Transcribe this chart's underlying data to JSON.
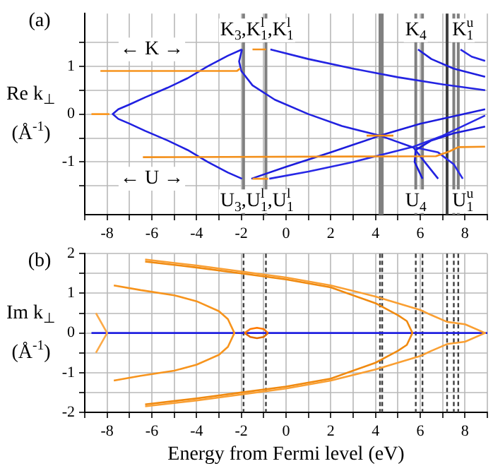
{
  "chart_data": [
    {
      "type": "line",
      "ylabel": "Re k$_{⊥}$ (Å$^{-1}$)",
      "xlim": [
        -9,
        9
      ],
      "ylim": [
        -2.1,
        2.1
      ],
      "xticks": [
        {
          "value": -9,
          "label": null
        },
        -8,
        {
          "value": -7,
          "label": null
        },
        -6,
        {
          "value": -5,
          "label": null
        },
        -4,
        {
          "value": -3,
          "label": null
        },
        -2,
        {
          "value": -1,
          "label": null
        },
        0,
        {
          "value": 1,
          "label": null
        },
        2,
        {
          "value": 3,
          "label": null
        },
        4,
        {
          "value": 5,
          "label": null
        },
        6,
        {
          "value": 7,
          "label": null
        },
        8,
        {
          "value": 9,
          "label": null
        }
      ],
      "yticks": [
        {
          "value": -1.5,
          "label": null
        },
        -1,
        {
          "value": -0.5,
          "label": null
        },
        0,
        {
          "value": 0.5,
          "label": null
        },
        1,
        {
          "value": 1.5,
          "label": null
        }
      ],
      "grid": true,
      "marker": "none",
      "line_style": "solid",
      "series": [
        {
          "color": "#f18e19",
          "x": [
            3.6,
            4.8
          ],
          "values": [
            -0.45,
            -0.45
          ]
        },
        {
          "color": "#f7941e",
          "x": [
            -8.3,
            -2.2,
            -2.05
          ],
          "values": [
            0.9,
            0.9,
            0.95
          ]
        },
        {
          "color": "#f5921d",
          "x": [
            -1.5,
            -0.9
          ],
          "values": [
            1.35,
            1.35
          ]
        },
        {
          "color": "#f9961f",
          "x": [
            -1.5,
            -0.8
          ],
          "values": [
            -1.35,
            -1.35
          ]
        },
        {
          "color": "#f3901b",
          "x": [
            -6.4,
            6.7,
            7.3,
            7.7,
            8.9
          ],
          "values": [
            -0.9,
            -0.88,
            -0.78,
            -0.69,
            -0.68
          ]
        },
        {
          "color": "#fb9821",
          "x": [
            -8.7,
            -7.9
          ],
          "values": [
            0,
            0
          ]
        },
        {
          "color": "#2020e1",
          "x": [
            -1.97,
            -2.6,
            -3.5,
            -4.4,
            -5.3,
            -6.3,
            -7.0,
            -7.5,
            -7.75,
            -7.5,
            -7.0,
            -6.3,
            -5.3,
            -4.4,
            -3.5,
            -2.6,
            -1.97
          ],
          "values": [
            1.35,
            1.22,
            1.0,
            0.75,
            0.55,
            0.35,
            0.2,
            0.1,
            0,
            -0.1,
            -0.2,
            -0.35,
            -0.55,
            -0.75,
            -1.0,
            -1.22,
            -1.35
          ]
        },
        {
          "color": "#2222e0",
          "x": [
            -1.97,
            -2.1,
            -2.0,
            -1.5,
            -0.5,
            1,
            2.5,
            4.2,
            5.7,
            6.2,
            6.8
          ],
          "values": [
            1.35,
            1.1,
            0.9,
            0.6,
            0.3,
            0.0,
            -0.25,
            -0.45,
            -0.7,
            -1.0,
            -1.35
          ]
        },
        {
          "color": "#2424e2",
          "x": [
            -0.7,
            1,
            3,
            5,
            7,
            8.9
          ],
          "values": [
            1.35,
            1.15,
            0.95,
            0.77,
            0.62,
            0.5
          ]
        },
        {
          "color": "#1e1ede",
          "x": [
            5.9,
            6.5,
            7.5,
            8.9
          ],
          "values": [
            1.35,
            1.15,
            0.95,
            0.78
          ]
        },
        {
          "color": "#2626e4",
          "x": [
            7.8,
            8.3,
            8.9
          ],
          "values": [
            1.35,
            1.2,
            1.11
          ]
        },
        {
          "color": "#1c1cdc",
          "x": [
            -1.55,
            0,
            2,
            4.2,
            6,
            8.9
          ],
          "values": [
            -1.35,
            -1.1,
            -0.8,
            -0.45,
            -0.2,
            0.1
          ]
        },
        {
          "color": "#2828e6",
          "x": [
            -0.75,
            1,
            3,
            5.7,
            7,
            8.9
          ],
          "values": [
            -1.35,
            -1.2,
            -1.0,
            -0.68,
            -0.45,
            -0.03
          ]
        },
        {
          "color": "#1a1ada",
          "x": [
            6.1,
            5.75,
            5.8,
            6.5,
            7.5,
            8.9
          ],
          "values": [
            -1.35,
            -1.0,
            -0.75,
            -0.55,
            -0.4,
            -0.26
          ]
        },
        {
          "color": "#2a2ae8",
          "x": [
            5.8,
            6.8,
            7.5,
            7.9
          ],
          "values": [
            -0.7,
            -0.8,
            -1.05,
            -1.35
          ]
        }
      ],
      "ref_lines": [
        {
          "axis": "x",
          "value": -1.9,
          "color": "#808080",
          "line_style": "solid"
        },
        {
          "axis": "x",
          "value": -0.9,
          "color": "#808080",
          "line_style": "solid"
        },
        {
          "axis": "x",
          "value": 4.2,
          "color": "#808080",
          "line_style": "solid"
        },
        {
          "axis": "x",
          "value": 4.3,
          "color": "#808080",
          "line_style": "solid"
        },
        {
          "axis": "x",
          "value": 5.8,
          "color": "#808080",
          "line_style": "solid"
        },
        {
          "axis": "x",
          "value": 6.1,
          "color": "#808080",
          "line_style": "solid"
        },
        {
          "axis": "x",
          "value": 7.2,
          "color": "#404040",
          "line_style": "solid"
        },
        {
          "axis": "x",
          "value": 7.5,
          "color": "#808080",
          "line_style": "solid"
        },
        {
          "axis": "x",
          "value": 7.7,
          "color": "#808080",
          "line_style": "solid"
        }
      ],
      "annotations": [
        "(a)",
        "K$_{3}$,K$_{1}$$^{l}$,K$_{1}$$^{l}$",
        "K$_{4}$",
        "K$_{1}$$^{u}$",
        "U$_{3}$,U$_{1}$$^{l}$,U$_{1}$$^{l}$",
        "U$_{4}$",
        "U$_{1}$$^{u}$",
        "← K →",
        "← U →"
      ]
    },
    {
      "type": "line",
      "ylabel": "Im k$_{⊥}$ (Å$^{-1}$)",
      "xlabel": "Energy from Fermi level (eV)",
      "xlim": [
        -9,
        9
      ],
      "ylim": [
        -2,
        2
      ],
      "xticks": [
        {
          "value": -9,
          "label": null
        },
        -8,
        {
          "value": -7,
          "label": null
        },
        -6,
        {
          "value": -5,
          "label": null
        },
        -4,
        {
          "value": -3,
          "label": null
        },
        -2,
        {
          "value": -1,
          "label": null
        },
        0,
        {
          "value": 1,
          "label": null
        },
        2,
        {
          "value": 3,
          "label": null
        },
        4,
        {
          "value": 5,
          "label": null
        },
        6,
        {
          "value": 7,
          "label": null
        },
        8,
        {
          "value": 9,
          "label": null
        }
      ],
      "yticks": [
        -2,
        {
          "value": -1.5,
          "label": null
        },
        -1,
        {
          "value": -0.5,
          "label": null
        },
        0,
        {
          "value": 0.5,
          "label": null
        },
        1,
        {
          "value": 1.5,
          "label": null
        },
        2
      ],
      "grid": true,
      "marker": "none",
      "line_style": "solid",
      "series": [
        {
          "color": "#ff7a00",
          "x": [
            -1.85,
            -1.6,
            -1.3,
            -1.0,
            -0.8
          ],
          "values": [
            0,
            0.1,
            0.13,
            0.1,
            0
          ]
        },
        {
          "color": "#e06c00",
          "x": [
            -1.85,
            -1.6,
            -1.3,
            -1.0,
            -0.8
          ],
          "values": [
            0,
            -0.1,
            -0.13,
            -0.1,
            0
          ]
        },
        {
          "color": "#fcaa48",
          "x": [
            -8.5,
            -8.0,
            -8.5
          ],
          "values": [
            0.5,
            0,
            -0.5
          ]
        },
        {
          "color": "#f7941d",
          "x": [
            -7.7,
            -6.5,
            -5,
            -4,
            -3,
            -2.6,
            -2.31,
            -2.6,
            -3,
            -4,
            -5,
            -6.5,
            -7.7
          ],
          "values": [
            1.2,
            1.08,
            0.95,
            0.8,
            0.55,
            0.35,
            0,
            -0.35,
            -0.55,
            -0.8,
            -0.95,
            -1.08,
            -1.2
          ]
        },
        {
          "color": "#f08a10",
          "x": [
            -6.3,
            -4,
            -2,
            0,
            2,
            4,
            5,
            5.4,
            5.65,
            5.4,
            5,
            4,
            2,
            0,
            -2,
            -4,
            -6.3
          ],
          "values": [
            1.8,
            1.65,
            1.5,
            1.35,
            1.15,
            0.75,
            0.45,
            0.3,
            0,
            -0.3,
            -0.45,
            -0.75,
            -1.15,
            -1.35,
            -1.5,
            -1.65,
            -1.8
          ]
        },
        {
          "color": "#fa9f32",
          "x": [
            -6.3,
            -4,
            -2,
            0,
            2,
            4,
            6,
            6.5,
            7.2,
            8,
            8.9,
            8,
            7.2,
            6.5,
            6,
            4,
            2,
            0,
            -2,
            -4,
            -6.3
          ],
          "values": [
            1.85,
            1.7,
            1.55,
            1.4,
            1.2,
            0.92,
            0.58,
            0.45,
            0.28,
            0.22,
            0,
            -0.22,
            -0.28,
            -0.45,
            -0.58,
            -0.92,
            -1.2,
            -1.4,
            -1.55,
            -1.7,
            -1.85
          ]
        },
        {
          "color": "#2020e0",
          "x": [
            -8.7,
            9
          ],
          "values": [
            0,
            0
          ]
        }
      ],
      "ref_lines": [
        {
          "axis": "x",
          "value": -1.9,
          "color": "#404040",
          "line_style": "dashed"
        },
        {
          "axis": "x",
          "value": -0.9,
          "color": "#404040",
          "line_style": "dashed"
        },
        {
          "axis": "x",
          "value": 4.2,
          "color": "#404040",
          "line_style": "dashed"
        },
        {
          "axis": "x",
          "value": 4.3,
          "color": "#404040",
          "line_style": "dashed"
        },
        {
          "axis": "x",
          "value": 5.8,
          "color": "#404040",
          "line_style": "dashed"
        },
        {
          "axis": "x",
          "value": 6.1,
          "color": "#404040",
          "line_style": "dashed"
        },
        {
          "axis": "x",
          "value": 7.2,
          "color": "#404040",
          "line_style": "dashed"
        },
        {
          "axis": "x",
          "value": 7.5,
          "color": "#404040",
          "line_style": "dashed"
        },
        {
          "axis": "x",
          "value": 7.7,
          "color": "#404040",
          "line_style": "dashed"
        }
      ],
      "annotations": [
        "(b)"
      ]
    }
  ]
}
